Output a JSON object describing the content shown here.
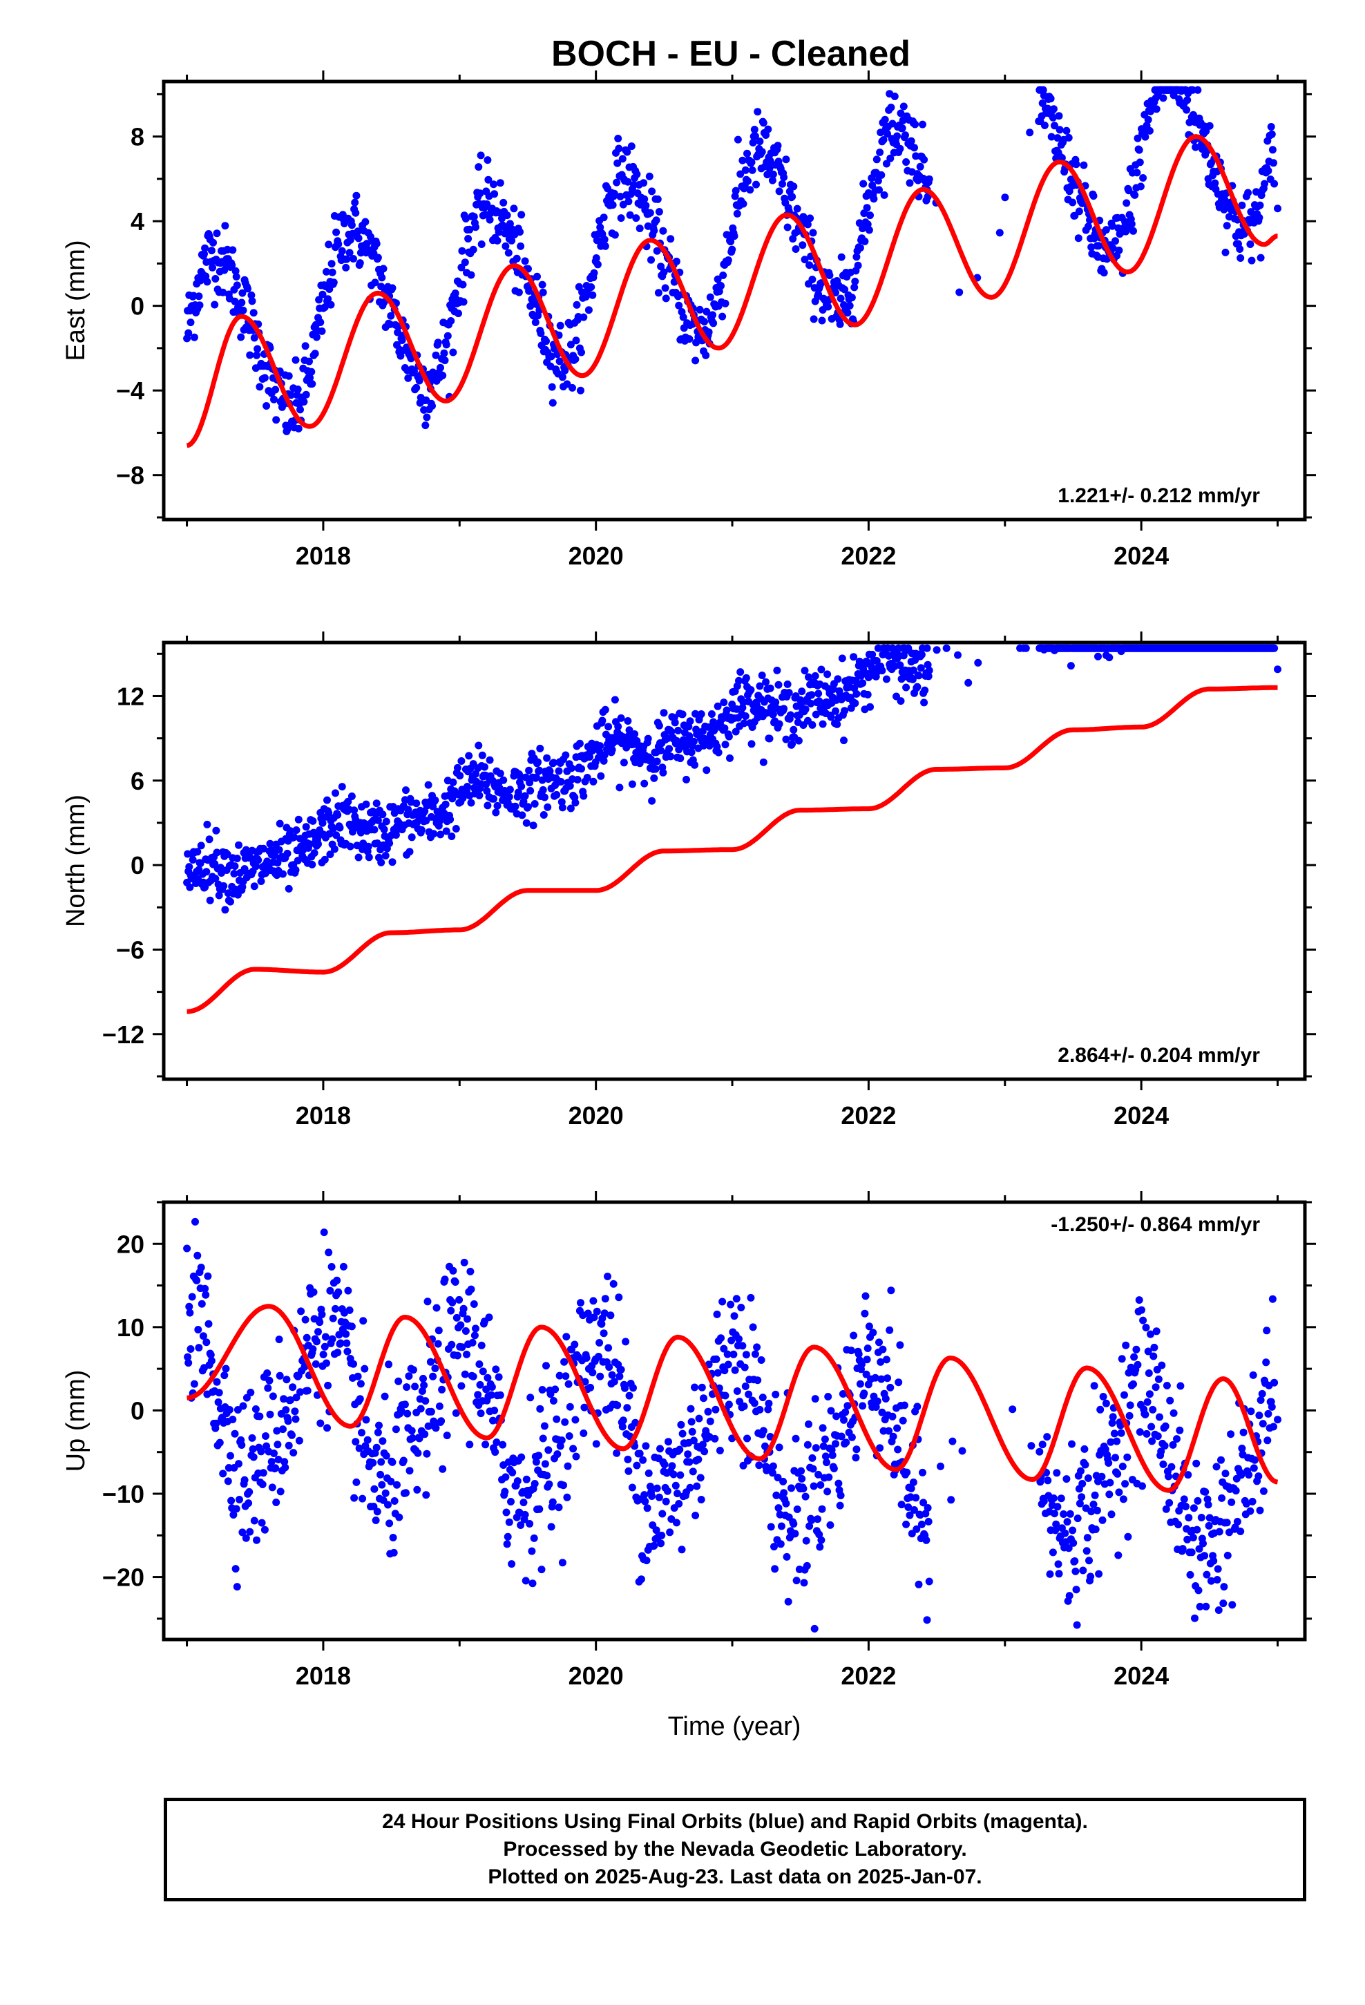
{
  "title": "BOCH  - EU - Cleaned",
  "colors": {
    "data": "#0000ff",
    "fit": "#ff0000",
    "frame": "#000000"
  },
  "footer": {
    "line1": "24 Hour Positions Using Final Orbits (blue) and Rapid Orbits (magenta).",
    "line2": "Processed by the Nevada Geodetic Laboratory.",
    "line3": "Plotted on 2025-Aug-23. Last data on 2025-Jan-07."
  },
  "chart_data": [
    {
      "type": "scatter",
      "ylabel": "East (mm)",
      "xlabel": "",
      "xlim": [
        2016.83,
        2025.2
      ],
      "ylim": [
        -10.1,
        10.6
      ],
      "xticks": [
        "2018",
        "2020",
        "2022",
        "2024"
      ],
      "yticks": [
        "8",
        "4",
        "0",
        "−4",
        "−8"
      ],
      "ytick_values": [
        8,
        4,
        0,
        -4,
        -8
      ],
      "rate": "1.221+/- 0.212 mm/yr",
      "rate_position": "bottom-right",
      "grid": false,
      "series": [
        {
          "kind": "points",
          "color": "#0000ff"
        },
        {
          "kind": "fit",
          "color": "#ff0000"
        }
      ],
      "model": {
        "offset": -1.8,
        "trend": 1.221,
        "annual_amp": 3.9,
        "annual_phase": 0.1,
        "semi_amp": 0.5,
        "semi_phase": 0.3,
        "noise": 0.9
      },
      "fit_curve": {
        "x": [
          2017.0,
          2017.4,
          2017.9,
          2018.4,
          2018.9,
          2019.4,
          2019.9,
          2020.4,
          2020.9,
          2021.4,
          2021.9,
          2022.4,
          2022.9,
          2023.4,
          2023.9,
          2024.4,
          2024.9,
          2025.0
        ],
        "y": [
          -6.6,
          -0.5,
          -5.7,
          0.6,
          -4.5,
          1.9,
          -3.3,
          3.1,
          -2.0,
          4.3,
          -0.9,
          5.5,
          0.4,
          6.8,
          1.6,
          8.0,
          2.9,
          3.3
        ]
      }
    },
    {
      "type": "scatter",
      "ylabel": "North (mm)",
      "xlabel": "",
      "xlim": [
        2016.83,
        2025.2
      ],
      "ylim": [
        -15.2,
        15.8
      ],
      "xticks": [
        "2018",
        "2020",
        "2022",
        "2024"
      ],
      "yticks": [
        "12",
        "6",
        "0",
        "−6",
        "−12"
      ],
      "ytick_values": [
        12,
        6,
        0,
        -6,
        -12
      ],
      "rate": "2.864+/- 0.204 mm/yr",
      "rate_position": "bottom-right",
      "grid": false,
      "series": [
        {
          "kind": "points",
          "color": "#0000ff"
        },
        {
          "kind": "fit",
          "color": "#ff0000"
        }
      ],
      "model": {
        "offset": -1.2,
        "trend": 2.864,
        "annual_amp": 0.7,
        "annual_phase": 0.9,
        "semi_amp": 0.4,
        "semi_phase": 0.2,
        "noise": 1.1
      },
      "fit_curve": {
        "x": [
          2017.0,
          2017.5,
          2018.0,
          2018.5,
          2019.0,
          2019.5,
          2020.0,
          2020.5,
          2021.0,
          2021.5,
          2022.0,
          2022.5,
          2023.0,
          2023.5,
          2024.0,
          2024.5,
          2025.0
        ],
        "y": [
          -10.4,
          -7.4,
          -7.6,
          -4.8,
          -4.6,
          -1.8,
          -1.8,
          1.0,
          1.1,
          3.9,
          4.0,
          6.8,
          6.9,
          9.6,
          9.8,
          12.5,
          12.6
        ]
      }
    },
    {
      "type": "scatter",
      "ylabel": "Up (mm)",
      "xlabel": "Time (year)",
      "xlim": [
        2016.83,
        2025.2
      ],
      "ylim": [
        -27.5,
        25.0
      ],
      "xticks": [
        "2018",
        "2020",
        "2022",
        "2024"
      ],
      "yticks": [
        "20",
        "10",
        "0",
        "−10",
        "−20"
      ],
      "ytick_values": [
        20,
        10,
        0,
        -10,
        -20
      ],
      "rate": "-1.250+/- 0.864 mm/yr",
      "rate_position": "top-right",
      "grid": false,
      "series": [
        {
          "kind": "points",
          "color": "#0000ff"
        },
        {
          "kind": "fit",
          "color": "#ff0000"
        }
      ],
      "model": {
        "offset": 2.0,
        "trend": -1.25,
        "annual_amp": 9.0,
        "annual_phase": 1.6,
        "semi_amp": 1.5,
        "semi_phase": 0.5,
        "noise": 5.0
      },
      "fit_curve": {
        "x": [
          2017.0,
          2017.6,
          2018.2,
          2018.6,
          2019.2,
          2019.6,
          2020.2,
          2020.6,
          2021.2,
          2021.6,
          2022.2,
          2022.6,
          2023.2,
          2023.6,
          2024.2,
          2024.6,
          2025.0
        ],
        "y": [
          1.5,
          12.5,
          -1.9,
          11.2,
          -3.3,
          10.0,
          -4.6,
          8.8,
          -5.8,
          7.6,
          -7.1,
          6.3,
          -8.3,
          5.1,
          -9.6,
          3.8,
          -8.6
        ]
      }
    }
  ]
}
